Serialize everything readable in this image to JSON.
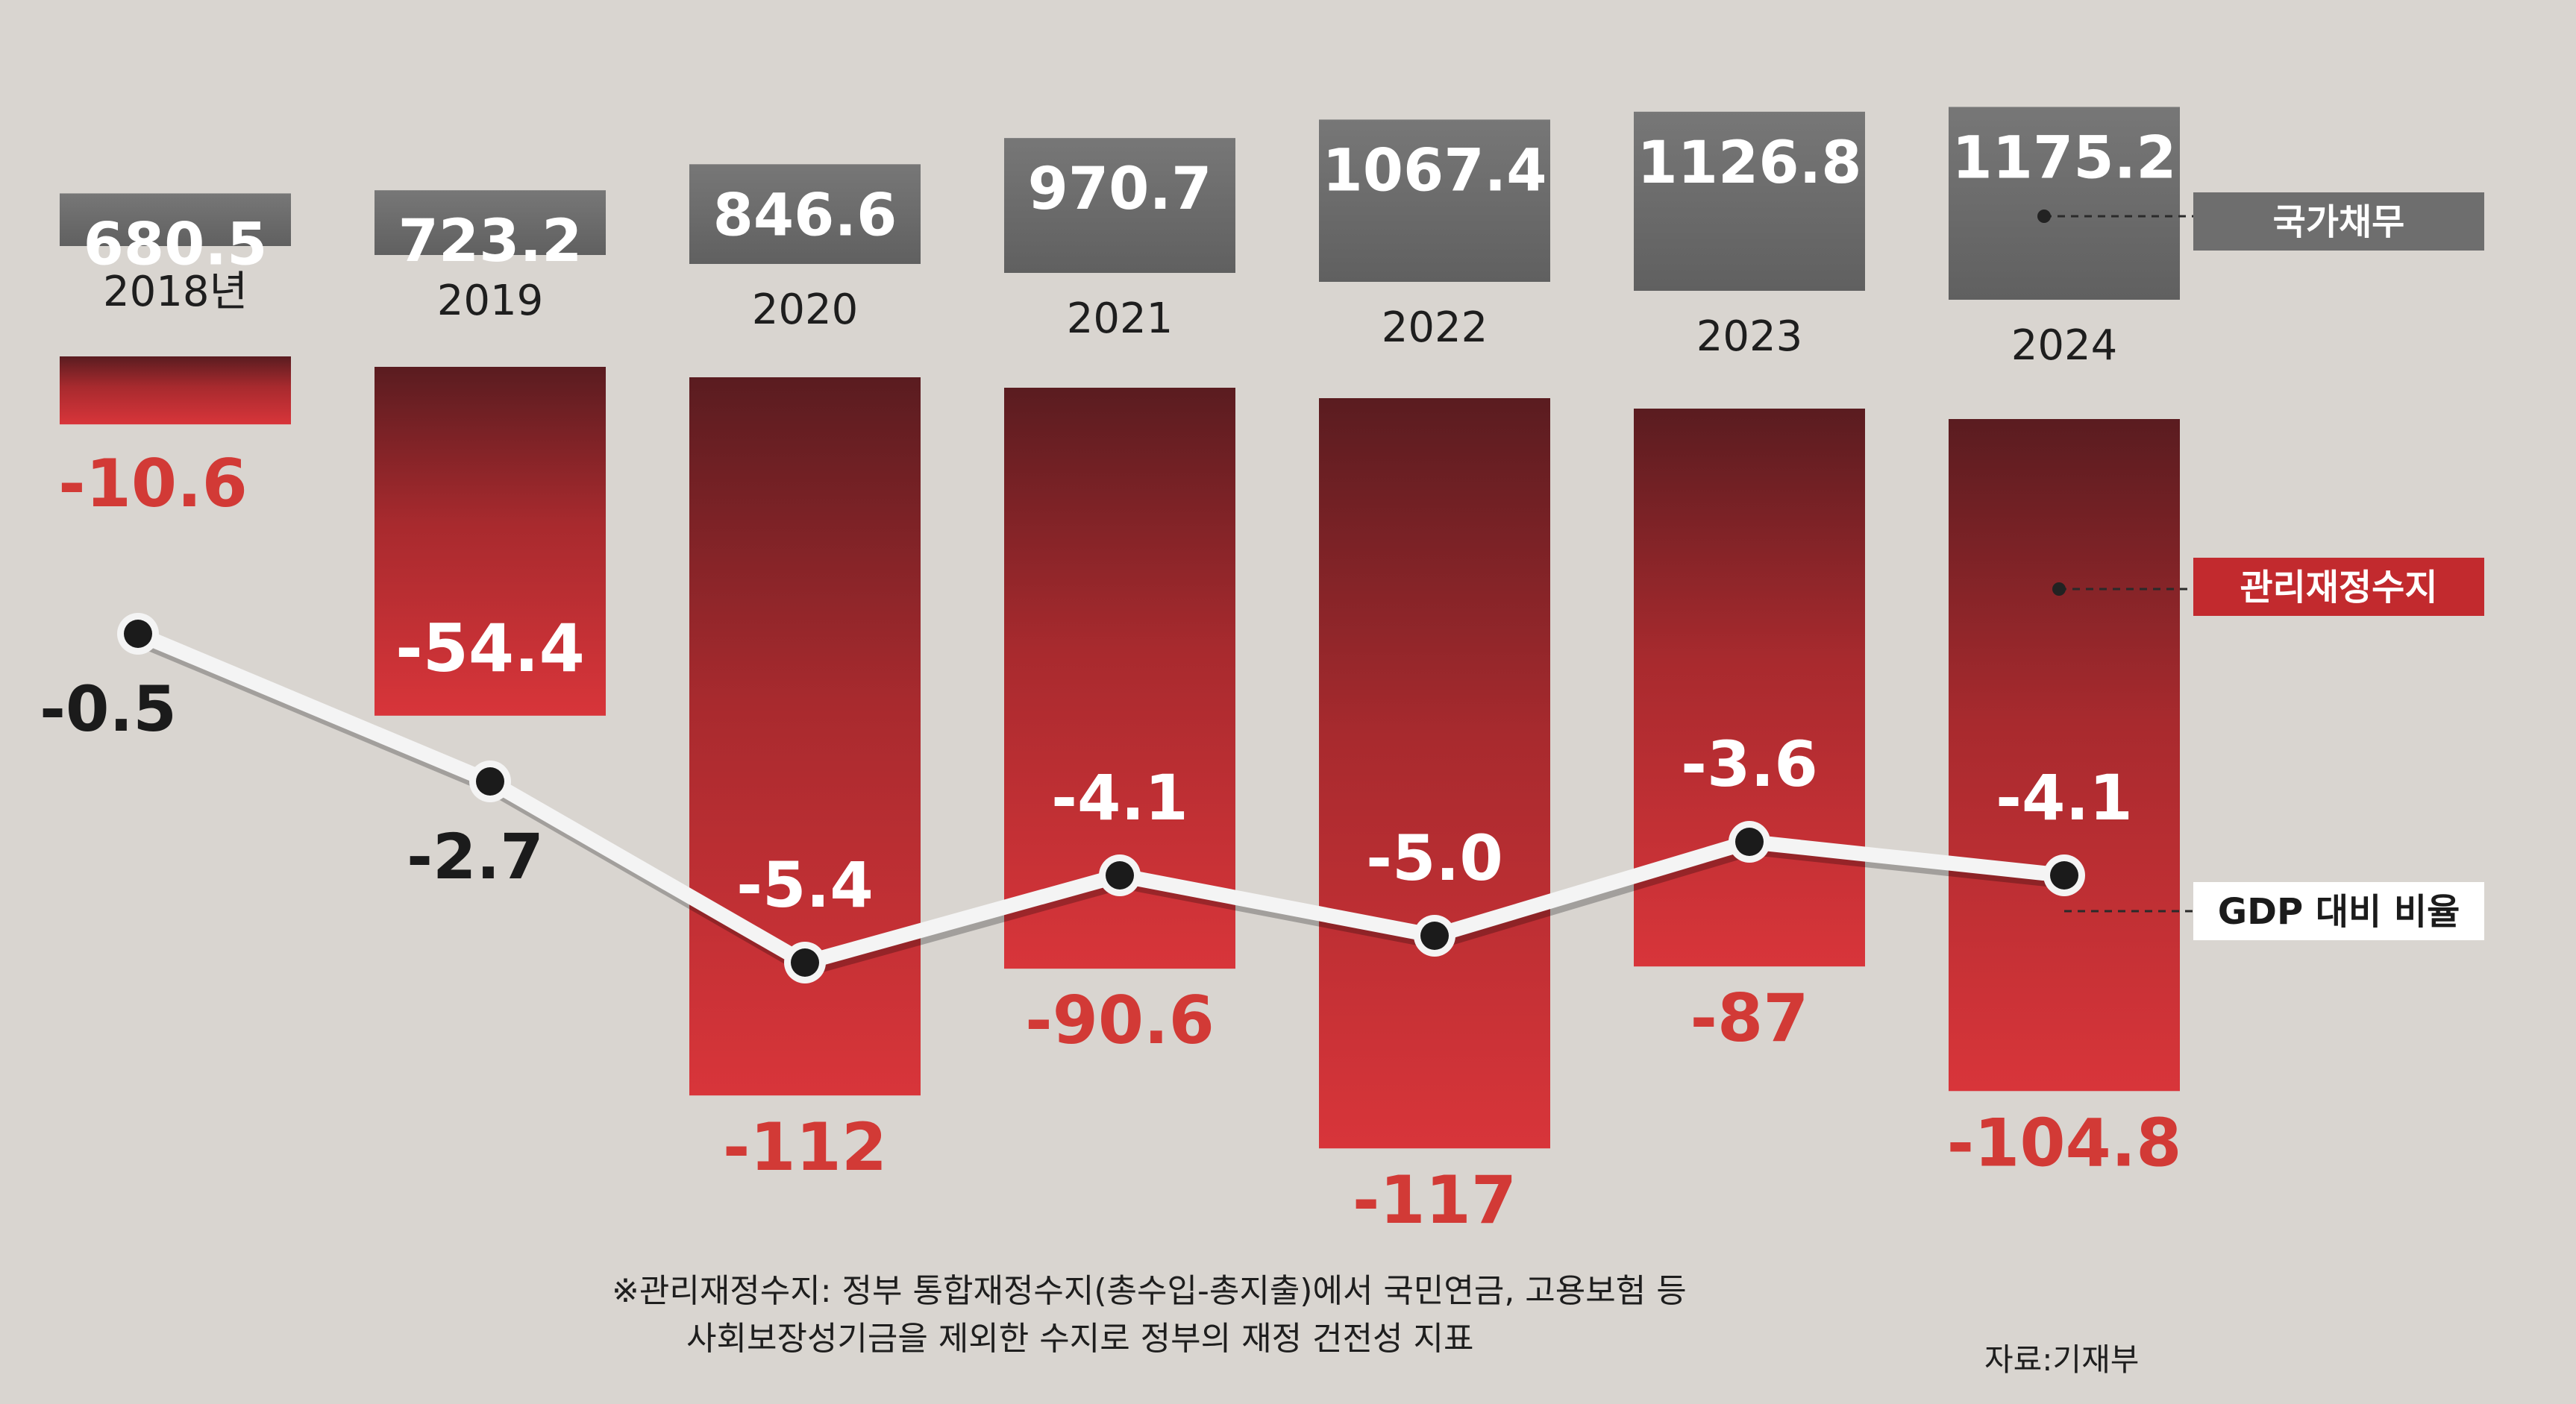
{
  "chart_data": {
    "type": "bar",
    "categories": [
      "2018년",
      "2019",
      "2020",
      "2021",
      "2022",
      "2023",
      "2024"
    ],
    "series": [
      {
        "name": "국가채무",
        "values": [
          680.5,
          723.2,
          846.6,
          970.7,
          1067.4,
          1126.8,
          1175.2
        ],
        "color": "#6e6e6e"
      },
      {
        "name": "관리재정수지",
        "values": [
          -10.6,
          -54.4,
          -112,
          -90.6,
          -117,
          -87,
          -104.8
        ],
        "color": "#c22a2e"
      },
      {
        "name": "GDP 대비 비율",
        "values": [
          -0.5,
          -2.7,
          -5.4,
          -4.1,
          -5.0,
          -3.6,
          -4.1
        ],
        "color": "#ffffff"
      }
    ],
    "value_labels": {
      "debt": [
        "680.5",
        "723.2",
        "846.6",
        "970.7",
        "1067.4",
        "1126.8",
        "1175.2"
      ],
      "balance": [
        "-10.6",
        "-54.4",
        "-112",
        "-90.6",
        "-117",
        "-87",
        "-104.8"
      ],
      "ratio": [
        "-0.5",
        "-2.7",
        "-5.4",
        "-4.1",
        "-5.0",
        "-3.6",
        "-4.1"
      ]
    },
    "legend_placement": "right",
    "grid": false
  },
  "footnote": {
    "line1": "※관리재정수지: 정부 통합재정수지(총수입-총지출)에서 국민연금, 고용보험 등",
    "line2": "사회보장성기금을 제외한 수지로 정부의 재정 건전성 지표"
  },
  "source": "자료:기재부",
  "colors": {
    "background": "#d9d5d0",
    "debt_box": "#6e6e6e",
    "balance_bar": "#c22a2e",
    "balance_label": "#d23a36",
    "legend_ratio_bg": "#ffffff"
  }
}
